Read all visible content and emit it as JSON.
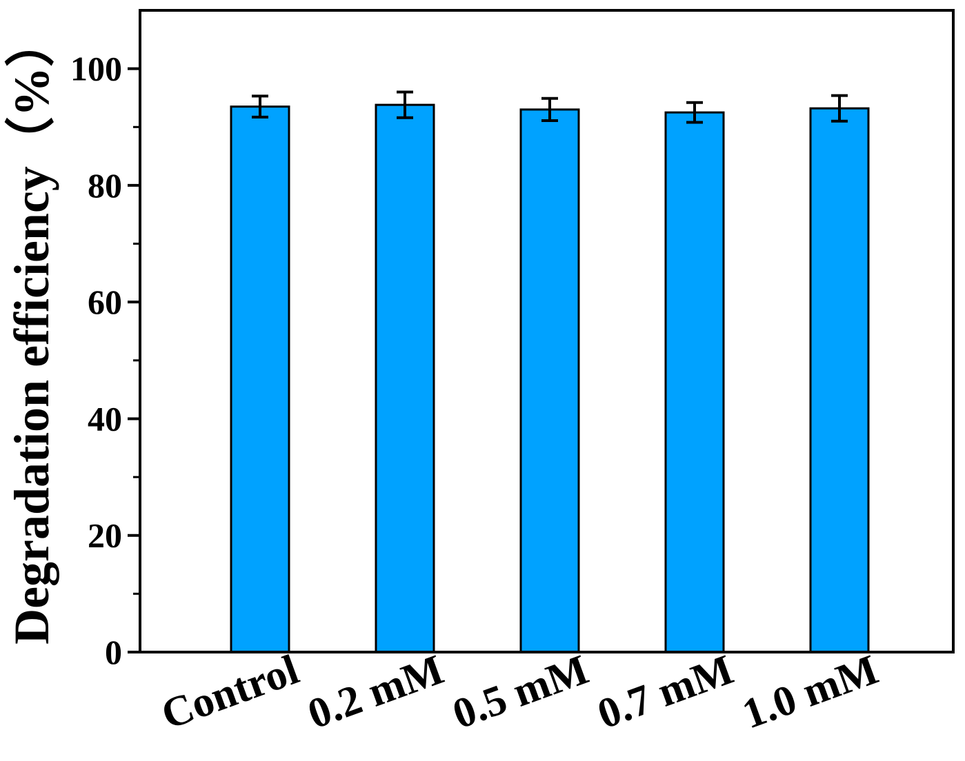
{
  "chart_data": {
    "type": "bar",
    "title": "",
    "xlabel": "",
    "ylabel": "Degradation efficiency（%）",
    "categories": [
      "Control",
      "0.2 mM",
      "0.5 mM",
      "0.7 mM",
      "1.0 mM"
    ],
    "values": [
      93.5,
      93.8,
      93.0,
      92.5,
      93.2
    ],
    "errors": [
      1.8,
      2.2,
      1.9,
      1.7,
      2.2
    ],
    "ylim": [
      0,
      110
    ],
    "yticks": [
      0,
      20,
      40,
      60,
      80,
      100
    ],
    "grid": false,
    "legend": "none",
    "bar_color": "#00a2ff",
    "bar_edge_color": "#000000"
  }
}
